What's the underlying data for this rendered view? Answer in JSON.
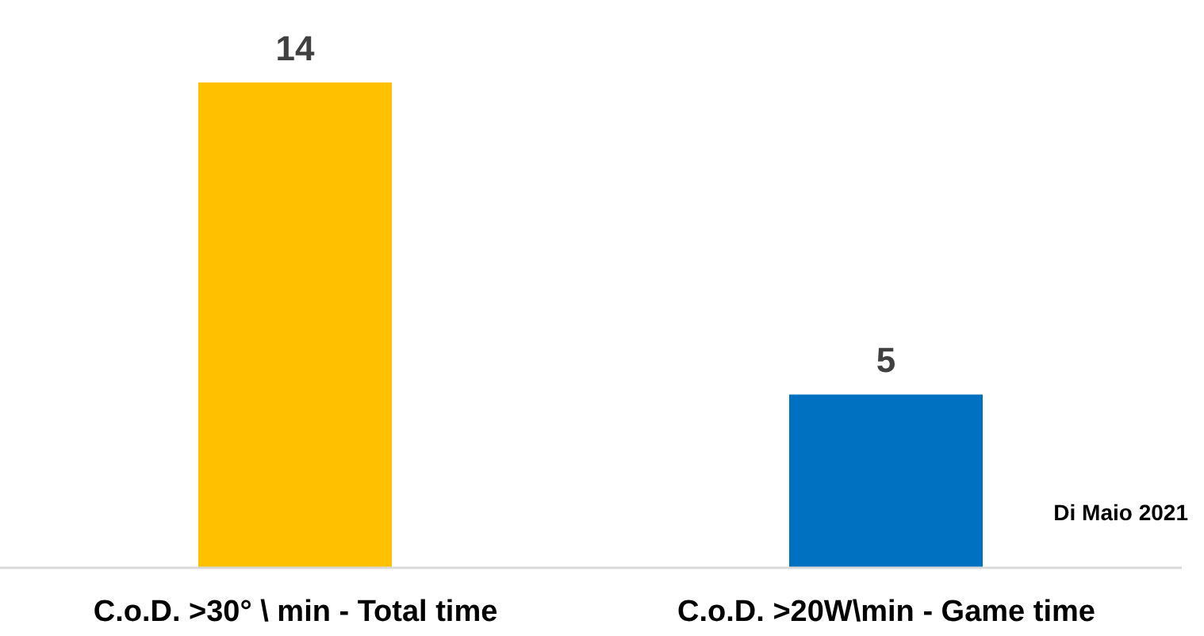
{
  "chart_data": {
    "type": "bar",
    "categories": [
      "C.o.D. >30° \\ min - Total time",
      "C.o.D. >20W\\min - Game time"
    ],
    "values": [
      14,
      5
    ],
    "colors": [
      "#ffc000",
      "#0070c0"
    ],
    "data_labels": true,
    "grid": false,
    "legend": false,
    "annotations": [
      "Di Maio 2021"
    ]
  }
}
